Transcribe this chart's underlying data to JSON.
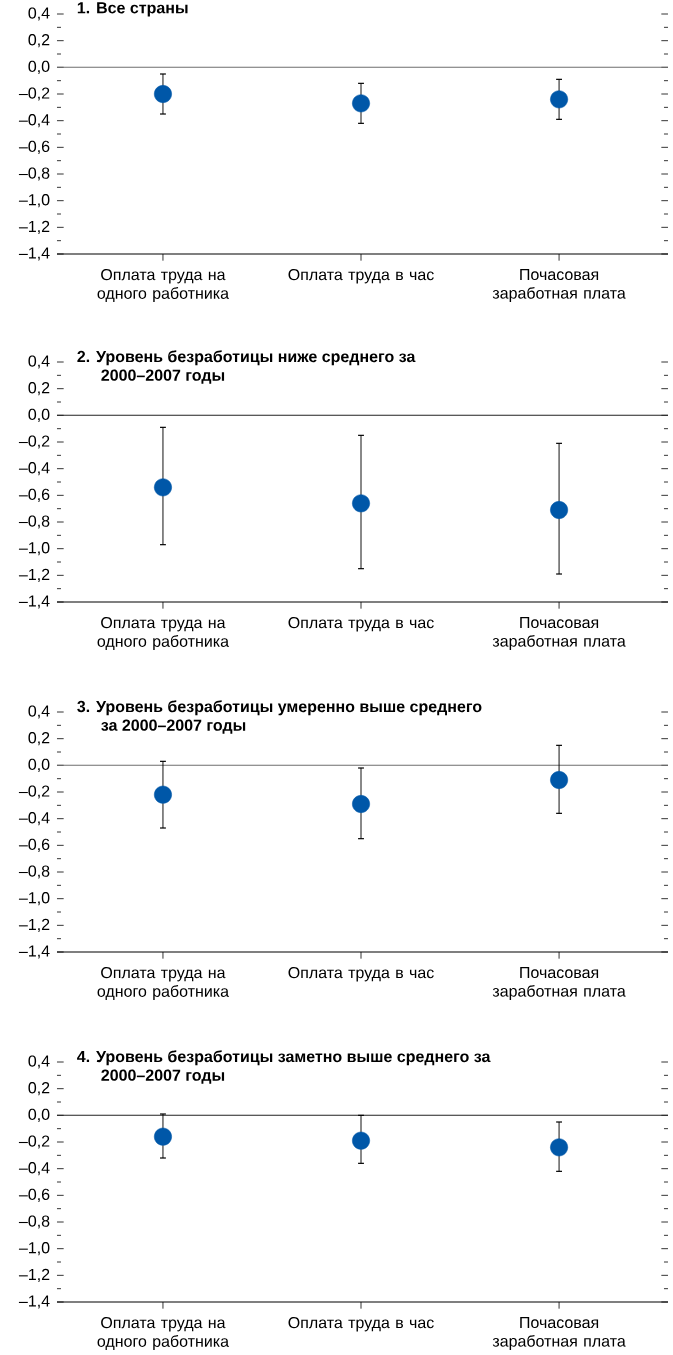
{
  "chart_data": [
    {
      "type": "scatter",
      "title": "1. Все страны",
      "categories": [
        "Оплата труда на одного работника",
        "Оплата труда в час",
        "Почасовая заработная плата"
      ],
      "values": [
        -0.2,
        -0.27,
        -0.24
      ],
      "errors": [
        [
          -0.35,
          -0.05
        ],
        [
          -0.42,
          -0.12
        ],
        [
          -0.39,
          -0.09
        ]
      ],
      "color": "#0057a8",
      "ylim": [
        -1.4,
        0.4
      ],
      "yticks": [
        {
          "value": -1.4,
          "label": "–1,4"
        },
        {
          "value": -1.2,
          "label": "–1,2"
        },
        {
          "value": -1.0,
          "label": "–1,0"
        },
        {
          "value": -0.8,
          "label": "–0,8"
        },
        {
          "value": -0.6,
          "label": "–0,6"
        },
        {
          "value": -0.4,
          "label": "–0,4"
        },
        {
          "value": -0.2,
          "label": "–0,2"
        },
        {
          "value": 0.0,
          "label": "0,0"
        },
        {
          "value": 0.2,
          "label": "0,2"
        },
        {
          "value": 0.4,
          "label": "0,4"
        }
      ],
      "ref_lines": [
        {
          "axis": "y",
          "value": 0,
          "color": "#6e6e6e"
        }
      ]
    },
    {
      "type": "scatter",
      "title": "2. Уровень безработицы ниже среднего за 2000–2007 годы",
      "categories": [
        "Оплата труда на одного работника",
        "Оплата труда в час",
        "Почасовая заработная плата"
      ],
      "values": [
        -0.54,
        -0.66,
        -0.71
      ],
      "errors": [
        [
          -0.97,
          -0.09
        ],
        [
          -1.15,
          -0.15
        ],
        [
          -1.19,
          -0.21
        ]
      ],
      "color": "#0057a8",
      "ylim": [
        -1.4,
        0.4
      ],
      "yticks": [
        {
          "value": -1.4,
          "label": "–1,4"
        },
        {
          "value": -1.2,
          "label": "–1,2"
        },
        {
          "value": -1.0,
          "label": "–1,0"
        },
        {
          "value": -0.8,
          "label": "–0,8"
        },
        {
          "value": -0.6,
          "label": "–0,6"
        },
        {
          "value": -0.4,
          "label": "–0,4"
        },
        {
          "value": -0.2,
          "label": "–0,2"
        },
        {
          "value": 0.0,
          "label": "0,0"
        },
        {
          "value": 0.2,
          "label": "0,2"
        },
        {
          "value": 0.4,
          "label": "0,4"
        }
      ],
      "ref_lines": [
        {
          "axis": "y",
          "value": 0,
          "color": "#222222"
        }
      ]
    },
    {
      "type": "scatter",
      "title": "3. Уровень безработицы умеренно выше среднего за 2000–2007 годы",
      "categories": [
        "Оплата труда на одного работника",
        "Оплата труда в час",
        "Почасовая заработная плата"
      ],
      "values": [
        -0.22,
        -0.29,
        -0.11
      ],
      "errors": [
        [
          -0.47,
          0.03
        ],
        [
          -0.55,
          -0.02
        ],
        [
          -0.36,
          0.15
        ]
      ],
      "color": "#0057a8",
      "ylim": [
        -1.4,
        0.4
      ],
      "yticks": [
        {
          "value": -1.4,
          "label": "–1,4"
        },
        {
          "value": -1.2,
          "label": "–1,2"
        },
        {
          "value": -1.0,
          "label": "–1,0"
        },
        {
          "value": -0.8,
          "label": "–0,8"
        },
        {
          "value": -0.6,
          "label": "–0,6"
        },
        {
          "value": -0.4,
          "label": "–0,4"
        },
        {
          "value": -0.2,
          "label": "–0,2"
        },
        {
          "value": 0.0,
          "label": "0,0"
        },
        {
          "value": 0.2,
          "label": "0,2"
        },
        {
          "value": 0.4,
          "label": "0,4"
        }
      ],
      "ref_lines": [
        {
          "axis": "y",
          "value": 0,
          "color": "#6e6e6e"
        }
      ]
    },
    {
      "type": "scatter",
      "title": "4. Уровень безработицы заметно выше среднего за 2000–2007 годы",
      "categories": [
        "Оплата труда на одного работника",
        "Оплата труда в час",
        "Почасовая заработная плата"
      ],
      "values": [
        -0.16,
        -0.19,
        -0.24
      ],
      "errors": [
        [
          -0.32,
          0.01
        ],
        [
          -0.36,
          0.0
        ],
        [
          -0.42,
          -0.05
        ]
      ],
      "color": "#0057a8",
      "ylim": [
        -1.4,
        0.4
      ],
      "yticks": [
        {
          "value": -1.4,
          "label": "–1,4"
        },
        {
          "value": -1.2,
          "label": "–1,2"
        },
        {
          "value": -1.0,
          "label": "–1,0"
        },
        {
          "value": -0.8,
          "label": "–0,8"
        },
        {
          "value": -0.6,
          "label": "–0,6"
        },
        {
          "value": -0.4,
          "label": "–0,4"
        },
        {
          "value": -0.2,
          "label": "–0,2"
        },
        {
          "value": 0.0,
          "label": "0,0"
        },
        {
          "value": 0.2,
          "label": "0,2"
        },
        {
          "value": 0.4,
          "label": "0,4"
        }
      ],
      "ref_lines": [
        {
          "axis": "y",
          "value": 0,
          "color": "#222222"
        }
      ]
    }
  ]
}
